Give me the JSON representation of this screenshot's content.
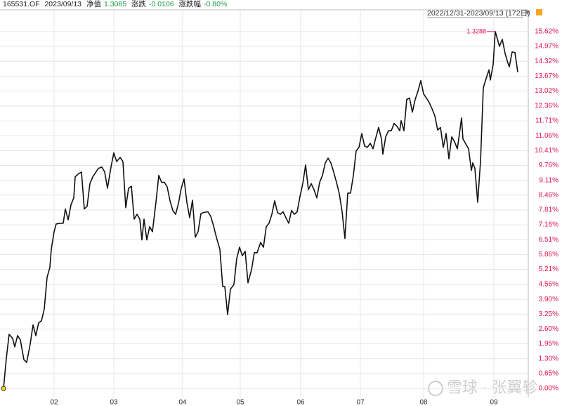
{
  "header": {
    "code": "165531.OF",
    "date": "2023/09/13",
    "nav_label": "净值",
    "nav": "1.3085",
    "change_label": "涨跌",
    "change": "-0.0106",
    "pct_label": "涨跌幅",
    "pct": "-0.80%"
  },
  "chart_data": {
    "type": "line",
    "range": "2022/12/31-2023/09/13 (172日)",
    "annotation": "1.3288",
    "watermark": "雪球 · 张翼轸",
    "grid": true,
    "xlim": [
      0,
      752
    ],
    "ylim": [
      -0.4,
      16.57
    ],
    "xticks": [
      {
        "value": 77,
        "label": "02"
      },
      {
        "value": 162,
        "label": "03"
      },
      {
        "value": 260,
        "label": "04"
      },
      {
        "value": 342,
        "label": "05"
      },
      {
        "value": 428,
        "label": "06"
      },
      {
        "value": 513,
        "label": "07"
      },
      {
        "value": 603,
        "label": "08"
      },
      {
        "value": 703,
        "label": "09"
      }
    ],
    "yticks": [
      {
        "value": 15.62,
        "label": "15.62%"
      },
      {
        "value": 14.97,
        "label": "14.97%"
      },
      {
        "value": 14.32,
        "label": "14.32%"
      },
      {
        "value": 13.67,
        "label": "13.67%"
      },
      {
        "value": 13.02,
        "label": "13.02%"
      },
      {
        "value": 12.36,
        "label": "12.36%"
      },
      {
        "value": 11.71,
        "label": "11.71%"
      },
      {
        "value": 11.06,
        "label": "11.06%"
      },
      {
        "value": 10.41,
        "label": "10.41%"
      },
      {
        "value": 9.76,
        "label": "9.76%"
      },
      {
        "value": 9.11,
        "label": "9.11%"
      },
      {
        "value": 8.46,
        "label": "8.46%"
      },
      {
        "value": 7.81,
        "label": "7.81%"
      },
      {
        "value": 7.16,
        "label": "7.16%"
      },
      {
        "value": 6.51,
        "label": "6.51%"
      },
      {
        "value": 5.86,
        "label": "5.86%"
      },
      {
        "value": 5.21,
        "label": "5.21%"
      },
      {
        "value": 4.56,
        "label": "4.56%"
      },
      {
        "value": 3.9,
        "label": "3.90%"
      },
      {
        "value": 3.25,
        "label": "3.25%"
      },
      {
        "value": 2.6,
        "label": "2.60%"
      },
      {
        "value": 1.95,
        "label": "1.95%"
      },
      {
        "value": 1.3,
        "label": "1.30%"
      },
      {
        "value": 0.65,
        "label": "0.65%"
      },
      {
        "value": 0,
        "label": "0.00%"
      }
    ],
    "tick_color": "#e0114f",
    "x": [
      5,
      9,
      13,
      18,
      21,
      25,
      29,
      34,
      38,
      43,
      47,
      51,
      55,
      59,
      63,
      67,
      71,
      73,
      77,
      80,
      86,
      90,
      93,
      97,
      101,
      105,
      107,
      111,
      116,
      120,
      124,
      128,
      132,
      140,
      145,
      149,
      153,
      158,
      162,
      166,
      171,
      175,
      179,
      183,
      187,
      191,
      195,
      199,
      202,
      205,
      209,
      213,
      217,
      222,
      226,
      230,
      234,
      238,
      242,
      246,
      250,
      254,
      258,
      262,
      266,
      270,
      274,
      278,
      282,
      286,
      290,
      296,
      300,
      304,
      308,
      313,
      317,
      320,
      324,
      328,
      333,
      337,
      341,
      345,
      349,
      353,
      358,
      362,
      366,
      371,
      375,
      379,
      383,
      387,
      391,
      395,
      399,
      403,
      407,
      411,
      415,
      419,
      423,
      427,
      431,
      435,
      439,
      443,
      447,
      451,
      455,
      459,
      463,
      467,
      471,
      475,
      479,
      483,
      487,
      491,
      495,
      499,
      503,
      507,
      511,
      515,
      519,
      523,
      527,
      531,
      535,
      539,
      543,
      545,
      549,
      553,
      557,
      561,
      565,
      569,
      571,
      575,
      579,
      583,
      587,
      591,
      595,
      599,
      603,
      607,
      611,
      615,
      619,
      623,
      627,
      631,
      635,
      639,
      643,
      647,
      651,
      653,
      657,
      659,
      663,
      667,
      671,
      673,
      676,
      680,
      684,
      688,
      692,
      696,
      698,
      702,
      705,
      711,
      715,
      719,
      723,
      725,
      729,
      733,
      737
    ],
    "series": [
      {
        "color": "#111111",
        "values": [
          0,
          1.32,
          2.37,
          2.19,
          1.82,
          2.31,
          2.12,
          1.26,
          1.14,
          1.94,
          2.78,
          2.31,
          2.87,
          2.96,
          3.48,
          4.86,
          5.3,
          6.09,
          6.86,
          7.2,
          7.23,
          7.23,
          7.85,
          7.38,
          8.03,
          8.34,
          9.26,
          9.38,
          9.47,
          7.85,
          7.97,
          8.96,
          9.26,
          9.63,
          9.69,
          9.47,
          8.76,
          9.69,
          10.31,
          9.93,
          10.11,
          9.93,
          7.91,
          8.76,
          8.85,
          7.41,
          7.62,
          7.41,
          6.5,
          7.41,
          6.5,
          7.08,
          6.86,
          8.15,
          9.32,
          9.02,
          9.02,
          8.82,
          8.21,
          7.79,
          7.62,
          8.09,
          8.76,
          9.17,
          8.15,
          7.47,
          8.24,
          6.62,
          6.86,
          7.65,
          7.7,
          7.73,
          7.53,
          7.11,
          6.62,
          6.09,
          4.46,
          4.46,
          3.23,
          4.34,
          4.55,
          5.69,
          6.18,
          5.81,
          6.0,
          4.62,
          5.19,
          5.94,
          5.94,
          6.39,
          6.18,
          7.08,
          7.23,
          7.62,
          8.21,
          7.7,
          7.62,
          7.73,
          7.47,
          7.23,
          7.79,
          7.62,
          7.73,
          8.4,
          8.96,
          9.78,
          8.7,
          8.96,
          8.7,
          8.34,
          9.02,
          9.32,
          9.87,
          10.08,
          9.87,
          9.47,
          9.02,
          8.52,
          7.73,
          6.56,
          8.55,
          8.55,
          9.32,
          10.4,
          10.55,
          11.16,
          10.61,
          10.55,
          10.73,
          10.49,
          10.98,
          11.42,
          10.92,
          10.25,
          11.01,
          11.28,
          11.28,
          11.6,
          11.48,
          11.28,
          11.72,
          11.28,
          12.65,
          12.71,
          12.09,
          12.65,
          13.01,
          13.47,
          12.89,
          12.71,
          12.51,
          12.24,
          11.93,
          11.31,
          11.42,
          10.55,
          11.16,
          10.05,
          11.01,
          10.8,
          10.49,
          10.92,
          11.84,
          10.92,
          10.7,
          10.49,
          9.54,
          9.87,
          9.63,
          8.15,
          9.93,
          13.16,
          13.56,
          13.94,
          13.5,
          14.18,
          15.62,
          14.97,
          15.28,
          14.66,
          14.24,
          14.08,
          14.73,
          14.7,
          13.84
        ]
      }
    ]
  }
}
